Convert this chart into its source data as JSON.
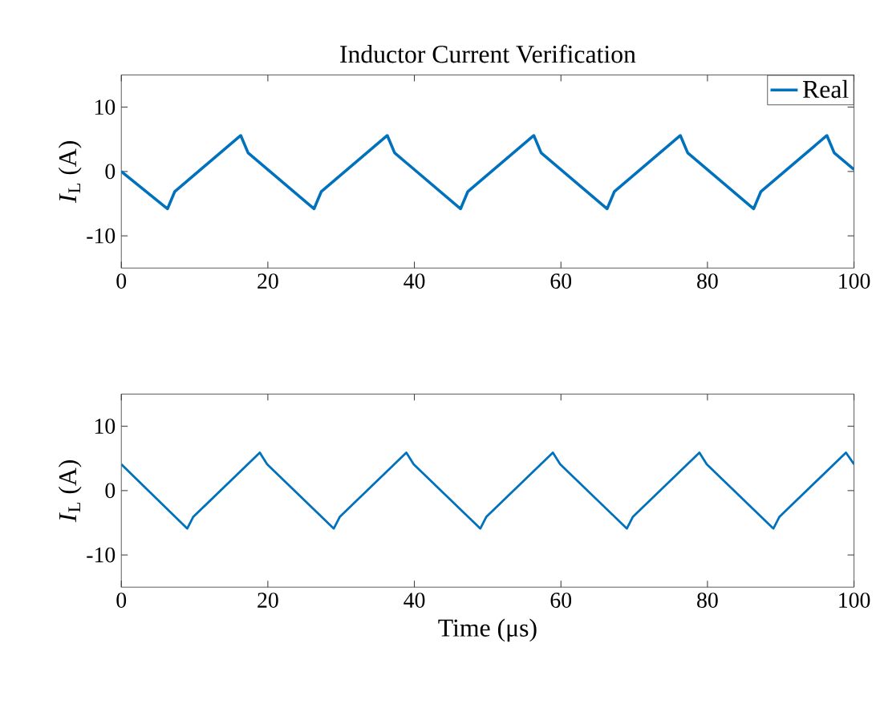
{
  "chart_data": [
    {
      "type": "line",
      "title": "Inductor Current Verification",
      "ylabel": "*I*$_{L}$ (A)",
      "xlim": [
        0,
        100
      ],
      "ylim": [
        -15,
        15
      ],
      "xticks": [
        0,
        20,
        40,
        60,
        80,
        100
      ],
      "yticks": [
        -10,
        0,
        10
      ],
      "grid": false,
      "legend": "top right",
      "marker": "none",
      "line_style": "solid",
      "series": [
        {
          "name": "Real",
          "color": "#0072bd",
          "x": [
            0,
            6.3,
            7.3,
            16.3,
            17.3,
            26.3,
            27.3,
            36.3,
            37.3,
            46.3,
            47.3,
            56.3,
            57.3,
            66.3,
            67.3,
            76.3,
            77.3,
            86.3,
            87.3,
            96.3,
            97.3,
            100
          ],
          "values": [
            0,
            -5.8,
            -3.1,
            5.6,
            2.9,
            -5.8,
            -3.1,
            5.6,
            2.9,
            -5.8,
            -3.1,
            5.6,
            2.9,
            -5.8,
            -3.1,
            5.6,
            2.9,
            -5.8,
            -3.1,
            5.6,
            2.9,
            0.3
          ]
        }
      ]
    },
    {
      "type": "line",
      "xlabel": "Time (μs)",
      "ylabel": "*I*$_{L}$ (A)",
      "xlim": [
        0,
        100
      ],
      "ylim": [
        -15,
        15
      ],
      "xticks": [
        0,
        20,
        40,
        60,
        80,
        100
      ],
      "yticks": [
        -10,
        0,
        10
      ],
      "grid": false,
      "legend": false,
      "marker": "none",
      "line_style": "solid",
      "series": [
        {
          "color": "#0072bd",
          "x": [
            0,
            9,
            9.8,
            18.9,
            19.9,
            29,
            29.8,
            38.9,
            39.9,
            49,
            49.8,
            58.9,
            59.9,
            69,
            69.8,
            78.9,
            79.9,
            89,
            89.8,
            98.9,
            100
          ],
          "values": [
            4.1,
            -5.9,
            -4.1,
            5.9,
            4.1,
            -5.9,
            -4.1,
            5.9,
            4.1,
            -5.9,
            -4.1,
            5.9,
            4.1,
            -5.9,
            -4.1,
            5.9,
            4.1,
            -5.9,
            -4.1,
            5.9,
            4.1
          ]
        }
      ]
    }
  ]
}
